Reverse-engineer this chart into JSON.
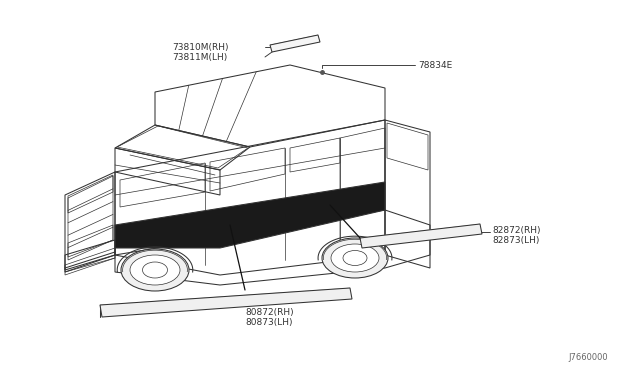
{
  "bg_color": "#ffffff",
  "line_color": "#333333",
  "text_color": "#333333",
  "diagram_id": "J7660000",
  "labels": {
    "roof_rh": "73810M(RH)",
    "roof_lh": "73811M(LH)",
    "antenna": "78834E",
    "rear_rh": "82872(RH)",
    "rear_lh": "82873(LH)",
    "front_rh": "80872(RH)",
    "front_lh": "80873(LH)"
  },
  "figsize": [
    6.4,
    3.72
  ],
  "dpi": 100
}
